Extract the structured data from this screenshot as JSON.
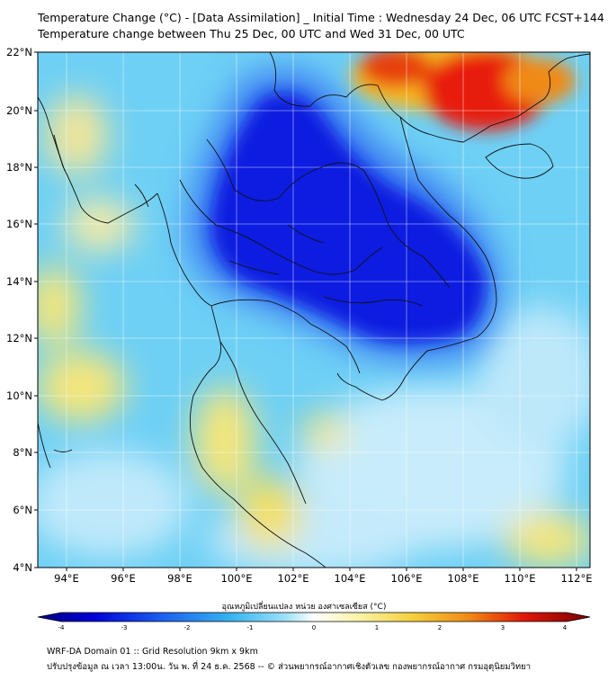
{
  "header": {
    "title_line1": "Temperature Change (°C) - [Data Assimilation] _ Initial Time : Wednesday 24 Dec, 06 UTC FCST+144",
    "title_line2": "Temperature change between Thu 25 Dec, 00 UTC and Wed 31 Dec, 00 UTC"
  },
  "map": {
    "lat_labels": [
      "22°N",
      "20°N",
      "18°N",
      "16°N",
      "14°N",
      "12°N",
      "10°N",
      "8°N",
      "6°N",
      "4°N"
    ],
    "lon_labels": [
      "94°E",
      "96°E",
      "98°E",
      "100°E",
      "102°E",
      "104°E",
      "106°E",
      "108°E",
      "110°E",
      "112°E"
    ],
    "colors": {
      "strong_cooling": "#0b1fe0",
      "cooling": "#2f7ef5",
      "slight_cooling": "#52c8f2",
      "neutral": "#cfeefb",
      "warming": "#f5e67a",
      "strong_warming": "#e81a0a"
    }
  },
  "colorbar": {
    "title": "อุณหภูมิเปลี่ยนแปลง หน่วย องศาเซลเซียส (°C)",
    "ticks": [
      "-4",
      "-3",
      "-2",
      "-1",
      "0",
      "1",
      "2",
      "3",
      "4"
    ],
    "stops": [
      "#000080",
      "#0000d8",
      "#1a5cf0",
      "#38b4f0",
      "#9fe2f8",
      "#ffffff",
      "#fbf3a8",
      "#f5d03a",
      "#f08a14",
      "#e01808",
      "#7a0000"
    ]
  },
  "footer": {
    "line1": "WRF-DA Domain 01 :: Grid Resolution 9km x 9km",
    "line2": "ปรับปรุงข้อมูล ณ เวลา 13:00น. วัน พ. ที่ 24 ธ.ค. 2568 -- © ส่วนพยากรณ์อากาศเชิงตัวเลข กองพยากรณ์อากาศ กรมอุตุนิยมวิทยา"
  }
}
